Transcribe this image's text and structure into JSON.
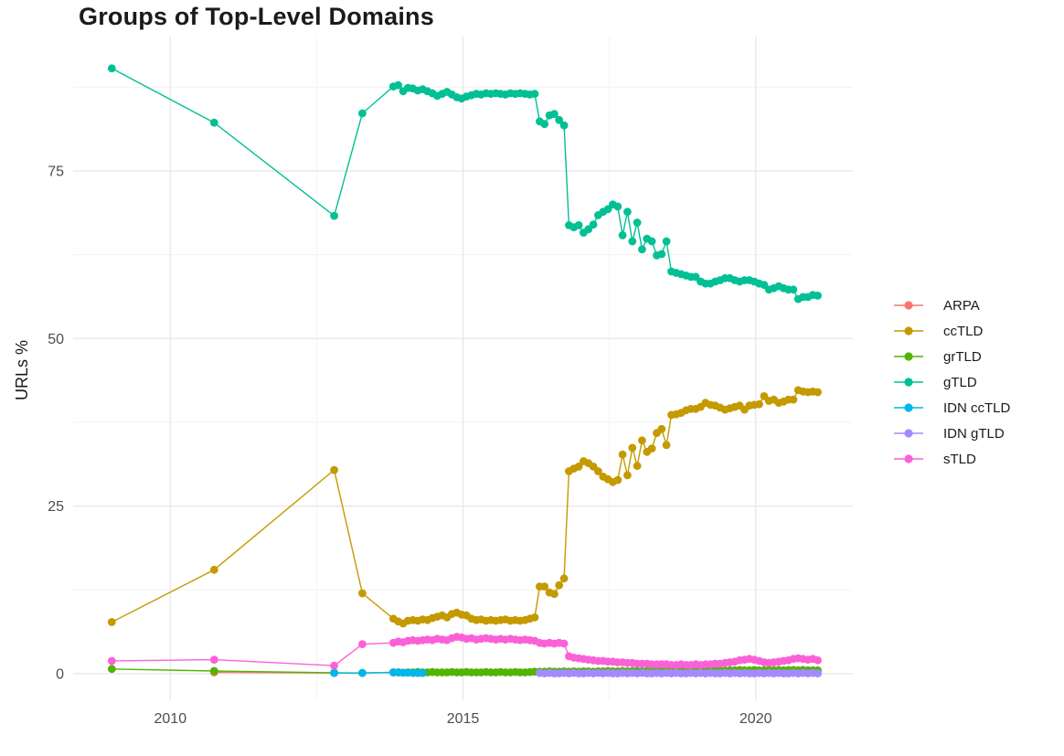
{
  "chart_data": {
    "type": "line",
    "title": "Groups of Top-Level Domains",
    "xlabel": "",
    "ylabel": "URLs %",
    "x_ticks": [
      2010,
      2015,
      2020
    ],
    "x_minor_ticks": [
      2012.5,
      2017.5
    ],
    "y_ticks": [
      0,
      25,
      50,
      75
    ],
    "y_minor_ticks": [
      12.5,
      37.5,
      62.5,
      87.5
    ],
    "xlim": [
      2008.34,
      2021.66
    ],
    "ylim": [
      -3.96,
      95.05
    ],
    "grid": {
      "major_color": "#e8e8e8",
      "minor_color": "#f3f3f3"
    },
    "legend_position": "right",
    "marker_radius": 4.4,
    "series": [
      {
        "name": "ARPA",
        "color": "#F8766D",
        "points": [
          [
            2010.75,
            0.2
          ],
          [
            2012.8,
            0.1
          ]
        ]
      },
      {
        "name": "ccTLD",
        "color": "#C49A00",
        "points": [
          [
            2009.0,
            7.7
          ],
          [
            2010.75,
            15.5
          ],
          [
            2012.8,
            30.4
          ],
          [
            2013.28,
            12.0
          ]
        ],
        "dense": {
          "x0": 2013.81,
          "dx": 0.08333,
          "values": [
            8.2,
            7.8,
            7.5,
            7.9,
            8.0,
            7.9,
            8.1,
            8.0,
            8.3,
            8.5,
            8.7,
            8.4,
            8.9,
            9.1,
            8.8,
            8.7,
            8.2,
            8.0,
            8.1,
            7.9,
            8.0,
            7.9,
            8.0,
            8.1,
            7.9,
            8.0,
            7.9,
            8.0,
            8.2,
            8.4,
            13.0,
            13.0,
            12.1,
            11.9,
            13.2,
            14.2,
            30.2,
            30.6,
            30.9,
            31.7,
            31.4,
            30.9,
            30.2,
            29.4,
            29.0,
            28.6,
            28.9,
            32.7,
            29.6,
            33.7,
            31.0,
            34.8,
            33.1,
            33.6,
            35.9,
            36.5,
            34.1,
            38.6,
            38.7,
            38.9,
            39.3,
            39.5,
            39.5,
            39.8,
            40.4,
            40.1,
            40.0,
            39.7,
            39.4,
            39.6,
            39.8,
            40.0,
            39.4,
            40.0,
            40.1,
            40.2,
            41.4,
            40.7,
            40.9,
            40.4,
            40.6,
            40.9,
            40.9,
            42.3,
            42.1,
            42.0,
            42.1,
            42.0
          ]
        }
      },
      {
        "name": "grTLD",
        "color": "#53B400",
        "points": [
          [
            2009.0,
            0.7
          ],
          [
            2010.75,
            0.4
          ],
          [
            2012.8,
            0.15
          ],
          [
            2013.28,
            0.1
          ]
        ],
        "dense": {
          "x0": 2013.81,
          "dx": 0.08333,
          "values": [
            0.2,
            0.2,
            0.15,
            0.2,
            0.2,
            0.25,
            0.2,
            0.2,
            0.25,
            0.2,
            0.2,
            0.2,
            0.25,
            0.2,
            0.2,
            0.25,
            0.2,
            0.2,
            0.2,
            0.25,
            0.2,
            0.2,
            0.25,
            0.2,
            0.2,
            0.25,
            0.2,
            0.2,
            0.25,
            0.3,
            0.3,
            0.3,
            0.35,
            0.3,
            0.3,
            0.35,
            0.3,
            0.35,
            0.3,
            0.35,
            0.35,
            0.3,
            0.35,
            0.35,
            0.4,
            0.35,
            0.35,
            0.4,
            0.35,
            0.4,
            0.4,
            0.35,
            0.4,
            0.4,
            0.45,
            0.4,
            0.4,
            0.45,
            0.4,
            0.45,
            0.45,
            0.5,
            0.45,
            0.45,
            0.5,
            0.45,
            0.5,
            0.5,
            0.45,
            0.5,
            0.5,
            0.55,
            0.5,
            0.5,
            0.55,
            0.5,
            0.5,
            0.55,
            0.5,
            0.55,
            0.5,
            0.55,
            0.55,
            0.5,
            0.55,
            0.5,
            0.5,
            0.5
          ]
        }
      },
      {
        "name": "gTLD",
        "color": "#00C094",
        "points": [
          [
            2009.0,
            90.3
          ],
          [
            2010.75,
            82.2
          ],
          [
            2012.8,
            68.3
          ],
          [
            2013.28,
            83.6
          ]
        ],
        "dense": {
          "x0": 2013.81,
          "dx": 0.08333,
          "values": [
            87.6,
            87.8,
            86.9,
            87.4,
            87.3,
            87.0,
            87.2,
            86.9,
            86.6,
            86.2,
            86.5,
            86.8,
            86.4,
            86.0,
            85.8,
            86.1,
            86.3,
            86.5,
            86.4,
            86.6,
            86.5,
            86.6,
            86.5,
            86.4,
            86.6,
            86.5,
            86.6,
            86.5,
            86.4,
            86.5,
            82.4,
            82.0,
            83.3,
            83.5,
            82.6,
            81.8,
            66.9,
            66.6,
            66.9,
            65.8,
            66.3,
            67.0,
            68.4,
            68.9,
            69.3,
            70.0,
            69.7,
            65.4,
            68.9,
            64.5,
            67.3,
            63.3,
            64.9,
            64.5,
            62.4,
            62.6,
            64.5,
            60.0,
            59.8,
            59.6,
            59.4,
            59.2,
            59.2,
            58.5,
            58.2,
            58.2,
            58.5,
            58.7,
            59.0,
            59.0,
            58.7,
            58.5,
            58.7,
            58.7,
            58.5,
            58.2,
            58.0,
            57.3,
            57.5,
            57.8,
            57.5,
            57.3,
            57.3,
            55.9,
            56.2,
            56.2,
            56.5,
            56.4
          ]
        }
      },
      {
        "name": "IDN ccTLD",
        "color": "#00B6EB",
        "points": [
          [
            2012.8,
            0.1
          ],
          [
            2013.28,
            0.1
          ],
          [
            2013.81,
            0.2
          ],
          [
            2013.9,
            0.2
          ],
          [
            2013.98,
            0.15
          ],
          [
            2014.06,
            0.15
          ],
          [
            2014.15,
            0.1
          ],
          [
            2014.23,
            0.1
          ],
          [
            2014.31,
            0.1
          ]
        ]
      },
      {
        "name": "IDN gTLD",
        "color": "#A58AFF",
        "points": [],
        "dense": {
          "x0": 2016.31,
          "dx": 0.08333,
          "values": [
            0.1,
            0.05,
            0.1,
            0.05,
            0.05,
            0.1,
            0.05,
            0.1,
            0.05,
            0.05,
            0.1,
            0.05,
            0.1,
            0.05,
            0.1,
            0.05,
            0.05,
            0.1,
            0.05,
            0.1,
            0.05,
            0.1,
            0.05,
            0.05,
            0.1,
            0.05,
            0.1,
            0.05,
            0.1,
            0.05,
            0.05,
            0.1,
            0.05,
            0.1,
            0.05,
            0.1,
            0.05,
            0.05,
            0.1,
            0.05,
            0.1,
            0.05,
            0.1,
            0.05,
            0.05,
            0.1,
            0.05,
            0.1,
            0.05,
            0.1,
            0.05,
            0.05,
            0.1,
            0.05,
            0.1,
            0.05,
            0.1,
            0.05
          ]
        }
      },
      {
        "name": "sTLD",
        "color": "#FB61D7",
        "points": [
          [
            2009.0,
            1.9
          ],
          [
            2010.75,
            2.1
          ],
          [
            2012.8,
            1.2
          ],
          [
            2013.28,
            4.4
          ]
        ],
        "dense": {
          "x0": 2013.81,
          "dx": 0.08333,
          "values": [
            4.6,
            4.8,
            4.7,
            4.9,
            5.0,
            4.9,
            5.0,
            5.1,
            5.0,
            5.2,
            5.1,
            5.0,
            5.3,
            5.5,
            5.4,
            5.2,
            5.3,
            5.1,
            5.2,
            5.3,
            5.2,
            5.1,
            5.2,
            5.1,
            5.2,
            5.1,
            5.0,
            5.1,
            5.0,
            4.9,
            4.6,
            4.5,
            4.6,
            4.5,
            4.6,
            4.5,
            2.6,
            2.4,
            2.3,
            2.2,
            2.1,
            2.0,
            1.9,
            1.9,
            1.8,
            1.8,
            1.7,
            1.7,
            1.6,
            1.6,
            1.5,
            1.5,
            1.5,
            1.4,
            1.4,
            1.4,
            1.4,
            1.3,
            1.3,
            1.4,
            1.3,
            1.3,
            1.4,
            1.3,
            1.4,
            1.4,
            1.5,
            1.5,
            1.6,
            1.7,
            1.8,
            2.0,
            2.1,
            2.2,
            2.1,
            1.9,
            1.7,
            1.6,
            1.7,
            1.8,
            1.9,
            2.0,
            2.2,
            2.3,
            2.2,
            2.1,
            2.2,
            2.0
          ]
        }
      }
    ]
  }
}
